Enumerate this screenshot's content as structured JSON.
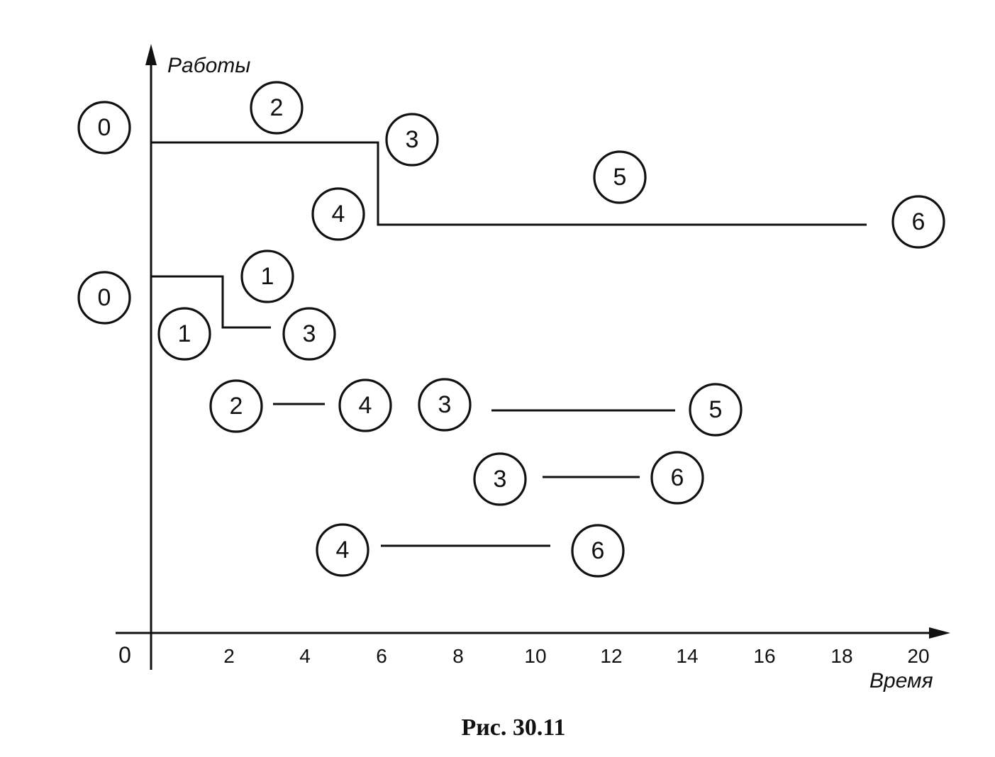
{
  "axes": {
    "y_label": "Работы",
    "x_label": "Время",
    "origin_label": "0",
    "x_ticks": [
      "2",
      "4",
      "6",
      "8",
      "10",
      "12",
      "14",
      "16",
      "18",
      "20"
    ]
  },
  "caption": "Рис. 30.11",
  "nodes": [
    {
      "id": "n0a",
      "label": "0"
    },
    {
      "id": "n2a",
      "label": "2"
    },
    {
      "id": "n3a",
      "label": "3"
    },
    {
      "id": "n5a",
      "label": "5"
    },
    {
      "id": "n4a",
      "label": "4"
    },
    {
      "id": "n6a",
      "label": "6"
    },
    {
      "id": "n1a",
      "label": "1"
    },
    {
      "id": "n0b",
      "label": "0"
    },
    {
      "id": "n1b",
      "label": "1"
    },
    {
      "id": "n3b",
      "label": "3"
    },
    {
      "id": "n2c",
      "label": "2"
    },
    {
      "id": "n4c",
      "label": "4"
    },
    {
      "id": "n3c",
      "label": "3"
    },
    {
      "id": "n5c",
      "label": "5"
    },
    {
      "id": "n3d",
      "label": "3"
    },
    {
      "id": "n6d",
      "label": "6"
    },
    {
      "id": "n4e",
      "label": "4"
    },
    {
      "id": "n6e",
      "label": "6"
    }
  ]
}
